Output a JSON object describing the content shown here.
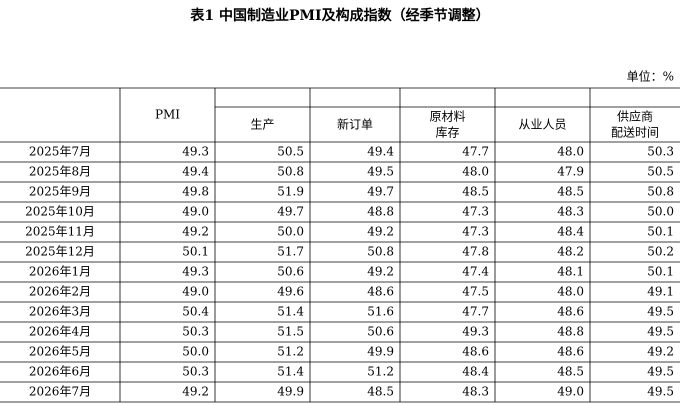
{
  "title": "表1 中国制造业PMI及构成指数（经季节调整）",
  "unit": "单位：%",
  "table": {
    "headers": [
      [
        "PMI"
      ],
      [
        "生产"
      ],
      [
        "新订单"
      ],
      [
        "原材料",
        "库存"
      ],
      [
        "从业人员"
      ],
      [
        "供应商",
        "配送时间"
      ]
    ],
    "rows": [
      [
        "2025年7月",
        "49.3",
        "50.5",
        "49.4",
        "47.7",
        "48.0",
        "50.3"
      ],
      [
        "2025年8月",
        "49.4",
        "50.8",
        "49.5",
        "48.0",
        "47.9",
        "50.5"
      ],
      [
        "2025年9月",
        "49.8",
        "51.9",
        "49.7",
        "48.5",
        "48.5",
        "50.8"
      ],
      [
        "2025年10月",
        "49.0",
        "49.7",
        "48.8",
        "47.3",
        "48.3",
        "50.0"
      ],
      [
        "2025年11月",
        "49.2",
        "50.0",
        "49.2",
        "47.3",
        "48.4",
        "50.1"
      ],
      [
        "2025年12月",
        "50.1",
        "51.7",
        "50.8",
        "47.8",
        "48.2",
        "50.2"
      ],
      [
        "2026年1月",
        "49.3",
        "50.6",
        "49.2",
        "47.4",
        "48.1",
        "50.1"
      ],
      [
        "2026年2月",
        "49.0",
        "49.6",
        "48.6",
        "47.5",
        "48.0",
        "49.1"
      ],
      [
        "2026年3月",
        "50.4",
        "51.4",
        "51.6",
        "47.7",
        "48.6",
        "49.5"
      ],
      [
        "2026年4月",
        "50.3",
        "51.5",
        "50.6",
        "49.3",
        "48.8",
        "49.5"
      ],
      [
        "2026年5月",
        "50.0",
        "51.2",
        "49.9",
        "48.6",
        "48.6",
        "49.2"
      ],
      [
        "2026年6月",
        "50.3",
        "51.4",
        "51.2",
        "48.4",
        "48.5",
        "49.5"
      ],
      [
        "2026年7月",
        "49.2",
        "49.9",
        "48.5",
        "48.3",
        "49.0",
        "49.5"
      ]
    ]
  }
}
